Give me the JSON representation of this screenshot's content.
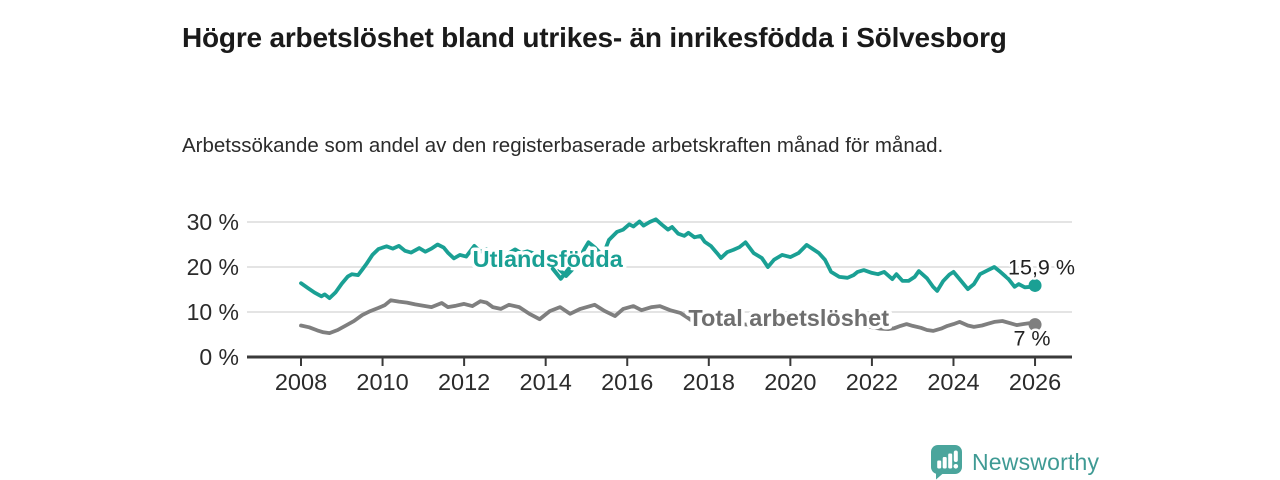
{
  "header": {
    "title": "Högre arbetslöshet bland utrikes- än inrikesfödda i Sölvesborg",
    "subtitle": "Arbetssökande som andel av den registerbaserade arbetskraften månad för månad."
  },
  "footer": {
    "brand": "Newsworthy"
  },
  "colors": {
    "accent_teal": "#1aa094",
    "series_gray": "#7f7f7f",
    "gray_label": "#6f6f6f",
    "axis": "#3a3a3a",
    "grid": "#dcdcdc",
    "text": "#2b2b2b",
    "logo_teal": "#4aa59c",
    "brand_text": "#3f9a94"
  },
  "chart_data": {
    "type": "line",
    "title": "Högre arbetslöshet bland utrikes- än inrikesfödda i Sölvesborg",
    "subtitle": "Arbetssökande som andel av den registerbaserade arbetskraften månad för månad.",
    "xlabel": "",
    "ylabel": "",
    "grid": "horizontal",
    "x_axis": {
      "tick_values": [
        2008,
        2010,
        2012,
        2014,
        2016,
        2018,
        2020,
        2022,
        2024,
        2026
      ],
      "tick_labels": [
        "2008",
        "2010",
        "2012",
        "2014",
        "2016",
        "2018",
        "2020",
        "2022",
        "2024",
        "2026"
      ],
      "range": [
        2006.7,
        2026.9
      ]
    },
    "y_axis": {
      "tick_values": [
        0,
        10,
        20,
        30
      ],
      "tick_labels": [
        "0 %",
        "10 %",
        "20 %",
        "30 %"
      ],
      "range": [
        0,
        30
      ]
    },
    "series": [
      {
        "name": "Total arbetslöshet",
        "color": "#7f7f7f",
        "label_color": "#6f6f6f",
        "label_pos": {
          "x": 2019.96,
          "y": 6.9
        },
        "end_value": 7.2,
        "end_label": "7 %",
        "end_label_offset": {
          "dx": -3,
          "dy": 21,
          "anchor": "middle"
        },
        "points": [
          [
            2008.0,
            7.0
          ],
          [
            2008.2,
            6.6
          ],
          [
            2008.4,
            5.9
          ],
          [
            2008.55,
            5.5
          ],
          [
            2008.7,
            5.3
          ],
          [
            2008.9,
            6.0
          ],
          [
            2009.1,
            7.0
          ],
          [
            2009.3,
            8.0
          ],
          [
            2009.5,
            9.3
          ],
          [
            2009.7,
            10.2
          ],
          [
            2009.9,
            10.9
          ],
          [
            2010.05,
            11.5
          ],
          [
            2010.2,
            12.6
          ],
          [
            2010.4,
            12.3
          ],
          [
            2010.6,
            12.1
          ],
          [
            2010.8,
            11.7
          ],
          [
            2011.0,
            11.4
          ],
          [
            2011.2,
            11.1
          ],
          [
            2011.45,
            12.0
          ],
          [
            2011.6,
            11.1
          ],
          [
            2011.8,
            11.4
          ],
          [
            2012.0,
            11.8
          ],
          [
            2012.2,
            11.3
          ],
          [
            2012.4,
            12.4
          ],
          [
            2012.55,
            12.1
          ],
          [
            2012.7,
            11.1
          ],
          [
            2012.9,
            10.7
          ],
          [
            2013.1,
            11.6
          ],
          [
            2013.35,
            11.1
          ],
          [
            2013.6,
            9.6
          ],
          [
            2013.85,
            8.4
          ],
          [
            2014.1,
            10.2
          ],
          [
            2014.35,
            11.1
          ],
          [
            2014.6,
            9.6
          ],
          [
            2014.85,
            10.7
          ],
          [
            2015.2,
            11.6
          ],
          [
            2015.45,
            10.2
          ],
          [
            2015.7,
            9.1
          ],
          [
            2015.9,
            10.7
          ],
          [
            2016.15,
            11.3
          ],
          [
            2016.35,
            10.4
          ],
          [
            2016.6,
            11.1
          ],
          [
            2016.8,
            11.3
          ],
          [
            2017.05,
            10.4
          ],
          [
            2017.3,
            9.8
          ],
          [
            2017.45,
            8.9
          ],
          [
            2017.6,
            8.0
          ],
          [
            2017.9,
            7.7
          ],
          [
            2018.2,
            7.4
          ],
          [
            2018.5,
            7.2
          ],
          [
            2018.8,
            7.3
          ],
          [
            2019.1,
            7.1
          ],
          [
            2019.4,
            7.0
          ],
          [
            2019.7,
            7.2
          ],
          [
            2020.0,
            7.6
          ],
          [
            2020.3,
            8.8
          ],
          [
            2020.5,
            9.2
          ],
          [
            2020.8,
            8.8
          ],
          [
            2021.1,
            8.2
          ],
          [
            2021.4,
            7.6
          ],
          [
            2021.7,
            7.1
          ],
          [
            2022.0,
            6.6
          ],
          [
            2022.2,
            6.3
          ],
          [
            2022.4,
            6.2
          ],
          [
            2022.55,
            6.4
          ],
          [
            2022.7,
            6.9
          ],
          [
            2022.85,
            7.3
          ],
          [
            2023.0,
            6.9
          ],
          [
            2023.2,
            6.5
          ],
          [
            2023.35,
            6.0
          ],
          [
            2023.5,
            5.8
          ],
          [
            2023.7,
            6.3
          ],
          [
            2023.85,
            6.9
          ],
          [
            2024.0,
            7.3
          ],
          [
            2024.15,
            7.8
          ],
          [
            2024.35,
            7.0
          ],
          [
            2024.5,
            6.7
          ],
          [
            2024.7,
            7.0
          ],
          [
            2024.85,
            7.4
          ],
          [
            2025.0,
            7.8
          ],
          [
            2025.2,
            8.0
          ],
          [
            2025.4,
            7.5
          ],
          [
            2025.55,
            7.1
          ],
          [
            2025.7,
            7.3
          ],
          [
            2025.85,
            7.5
          ],
          [
            2026.0,
            7.2
          ]
        ]
      },
      {
        "name": "Utlandsfödda",
        "color": "#1aa094",
        "label_color": "#1aa094",
        "label_pos": {
          "x": 2014.05,
          "y": 20.0
        },
        "annotation_arrow": {
          "x": 2014.37,
          "y_from": 19.6,
          "y_to": 17.4
        },
        "end_value": 15.9,
        "end_label": "15,9 %",
        "end_label_offset": {
          "dx": -27,
          "dy": -11,
          "anchor": "start"
        },
        "points": [
          [
            2008.0,
            16.4
          ],
          [
            2008.17,
            15.3
          ],
          [
            2008.33,
            14.3
          ],
          [
            2008.5,
            13.5
          ],
          [
            2008.58,
            13.9
          ],
          [
            2008.7,
            13.1
          ],
          [
            2008.85,
            14.4
          ],
          [
            2009.0,
            16.3
          ],
          [
            2009.15,
            17.9
          ],
          [
            2009.25,
            18.4
          ],
          [
            2009.4,
            18.2
          ],
          [
            2009.5,
            19.4
          ],
          [
            2009.6,
            20.6
          ],
          [
            2009.75,
            22.7
          ],
          [
            2009.9,
            24.0
          ],
          [
            2010.1,
            24.6
          ],
          [
            2010.25,
            24.1
          ],
          [
            2010.4,
            24.7
          ],
          [
            2010.55,
            23.6
          ],
          [
            2010.7,
            23.2
          ],
          [
            2010.9,
            24.2
          ],
          [
            2011.05,
            23.4
          ],
          [
            2011.2,
            24.1
          ],
          [
            2011.35,
            25.0
          ],
          [
            2011.5,
            24.3
          ],
          [
            2011.6,
            23.2
          ],
          [
            2011.75,
            21.9
          ],
          [
            2011.9,
            22.7
          ],
          [
            2012.05,
            22.3
          ],
          [
            2012.25,
            24.7
          ],
          [
            2012.4,
            23.4
          ],
          [
            2012.55,
            24.0
          ],
          [
            2012.7,
            22.1
          ],
          [
            2012.9,
            23.4
          ],
          [
            2013.05,
            22.8
          ],
          [
            2013.25,
            23.9
          ],
          [
            2013.4,
            23.1
          ],
          [
            2013.55,
            23.5
          ],
          [
            2013.75,
            22.9
          ],
          [
            2013.9,
            23.2
          ],
          [
            2014.05,
            22.4
          ],
          [
            2014.2,
            21.0
          ],
          [
            2014.35,
            19.3
          ],
          [
            2014.5,
            18.0
          ],
          [
            2014.65,
            19.4
          ],
          [
            2014.8,
            21.5
          ],
          [
            2014.95,
            24.0
          ],
          [
            2015.05,
            25.5
          ],
          [
            2015.2,
            24.4
          ],
          [
            2015.4,
            22.5
          ],
          [
            2015.55,
            26.0
          ],
          [
            2015.75,
            27.8
          ],
          [
            2015.9,
            28.3
          ],
          [
            2016.05,
            29.5
          ],
          [
            2016.15,
            29.0
          ],
          [
            2016.3,
            30.1
          ],
          [
            2016.4,
            29.2
          ],
          [
            2016.55,
            30.0
          ],
          [
            2016.7,
            30.6
          ],
          [
            2016.85,
            29.4
          ],
          [
            2017.0,
            28.3
          ],
          [
            2017.1,
            28.9
          ],
          [
            2017.25,
            27.4
          ],
          [
            2017.4,
            26.9
          ],
          [
            2017.5,
            27.6
          ],
          [
            2017.65,
            26.6
          ],
          [
            2017.8,
            26.9
          ],
          [
            2017.9,
            25.6
          ],
          [
            2018.05,
            24.7
          ],
          [
            2018.2,
            23.1
          ],
          [
            2018.3,
            22.0
          ],
          [
            2018.45,
            23.3
          ],
          [
            2018.6,
            23.8
          ],
          [
            2018.75,
            24.4
          ],
          [
            2018.9,
            25.5
          ],
          [
            2019.1,
            23.1
          ],
          [
            2019.3,
            22.0
          ],
          [
            2019.45,
            20.0
          ],
          [
            2019.6,
            21.6
          ],
          [
            2019.8,
            22.7
          ],
          [
            2020.0,
            22.2
          ],
          [
            2020.2,
            23.1
          ],
          [
            2020.4,
            24.9
          ],
          [
            2020.55,
            24.0
          ],
          [
            2020.7,
            23.1
          ],
          [
            2020.85,
            21.6
          ],
          [
            2021.0,
            18.9
          ],
          [
            2021.2,
            17.8
          ],
          [
            2021.4,
            17.6
          ],
          [
            2021.55,
            18.2
          ],
          [
            2021.65,
            18.9
          ],
          [
            2021.8,
            19.3
          ],
          [
            2022.0,
            18.7
          ],
          [
            2022.15,
            18.4
          ],
          [
            2022.3,
            18.9
          ],
          [
            2022.5,
            17.3
          ],
          [
            2022.6,
            18.4
          ],
          [
            2022.75,
            16.9
          ],
          [
            2022.9,
            16.9
          ],
          [
            2023.05,
            17.8
          ],
          [
            2023.15,
            19.1
          ],
          [
            2023.35,
            17.5
          ],
          [
            2023.5,
            15.6
          ],
          [
            2023.6,
            14.7
          ],
          [
            2023.75,
            16.9
          ],
          [
            2023.9,
            18.3
          ],
          [
            2024.0,
            18.9
          ],
          [
            2024.15,
            17.3
          ],
          [
            2024.35,
            15.1
          ],
          [
            2024.5,
            16.2
          ],
          [
            2024.65,
            18.4
          ],
          [
            2024.85,
            19.3
          ],
          [
            2025.0,
            20.0
          ],
          [
            2025.15,
            18.9
          ],
          [
            2025.35,
            17.3
          ],
          [
            2025.5,
            15.6
          ],
          [
            2025.6,
            16.2
          ],
          [
            2025.75,
            15.5
          ],
          [
            2025.9,
            15.6
          ],
          [
            2026.0,
            15.9
          ]
        ]
      }
    ]
  }
}
